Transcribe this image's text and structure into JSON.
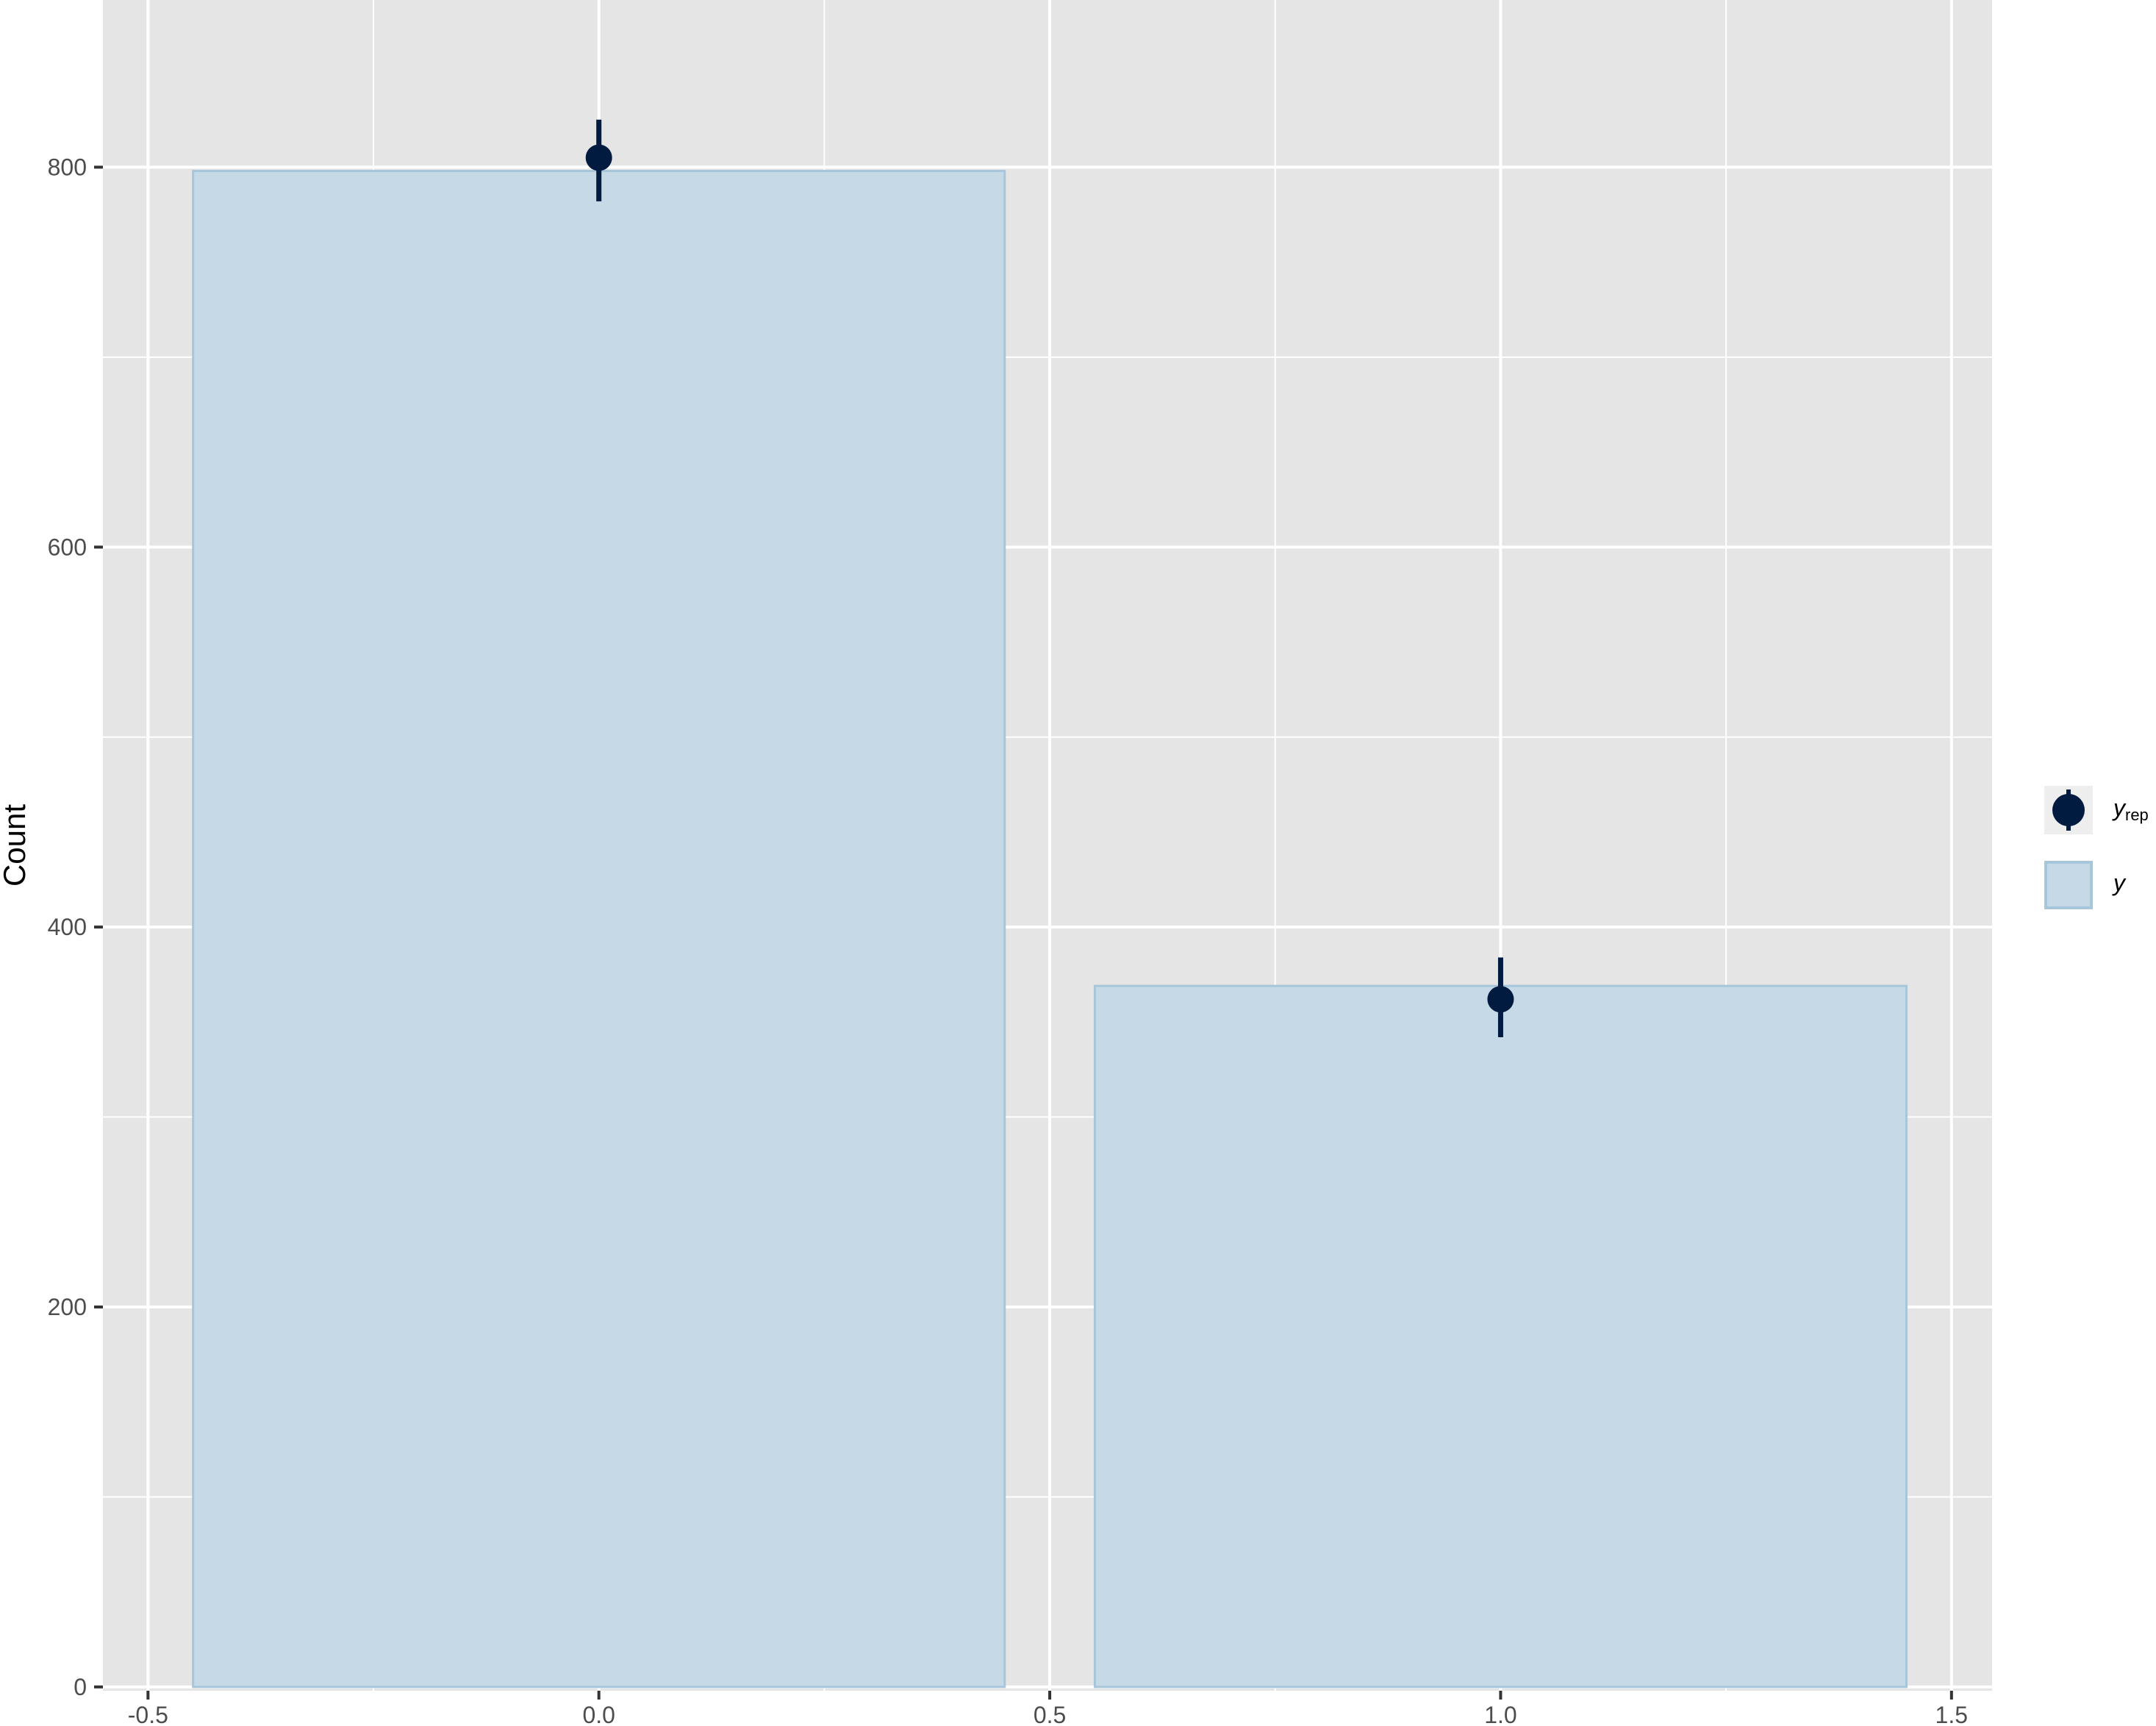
{
  "chart_data": {
    "type": "bar",
    "xlabel": "",
    "ylabel": "Count",
    "xlim": [
      -0.5,
      1.5
    ],
    "ylim": [
      0,
      800
    ],
    "x_ticks": [
      "-0.5",
      "0.0",
      "0.5",
      "1.0",
      "1.5"
    ],
    "y_ticks": [
      "0",
      "200",
      "400",
      "600",
      "800"
    ],
    "x_tick_values": [
      -0.5,
      0.0,
      0.5,
      1.0,
      1.5
    ],
    "y_tick_values": [
      0,
      200,
      400,
      600,
      800
    ],
    "grid": true,
    "legend_position": "right",
    "series": [
      {
        "name": "y",
        "type": "bar",
        "x": [
          0,
          1
        ],
        "values": [
          798,
          369
        ],
        "bar_width": 0.9,
        "fill": "#c6d9e7",
        "stroke": "#a8c6da"
      },
      {
        "name": "y_rep",
        "type": "pointrange",
        "x": [
          0,
          1
        ],
        "values": [
          805,
          362
        ],
        "lower": [
          782,
          342
        ],
        "upper": [
          825,
          384
        ],
        "color": "#011a40"
      }
    ],
    "legend": [
      {
        "symbol": "point",
        "base": "y",
        "sub": "rep"
      },
      {
        "symbol": "bar",
        "base": "y",
        "sub": ""
      }
    ],
    "colors": {
      "panel_background": "#e5e5e5",
      "grid": "#ffffff",
      "axis_text": "#4d4d4d"
    }
  }
}
